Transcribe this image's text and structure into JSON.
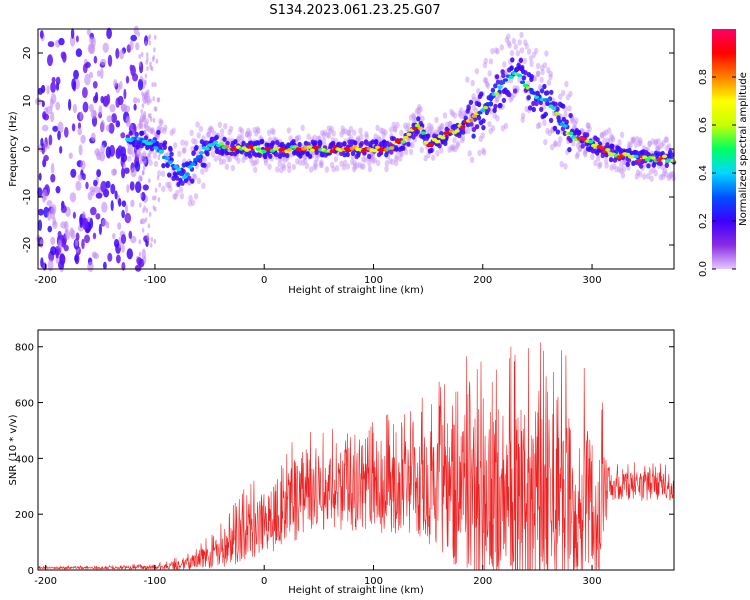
{
  "title": "S134.2023.061.23.25.G07",
  "chart_data": [
    {
      "type": "heatmap",
      "xlabel": "Height of straight line (km)",
      "ylabel": "Frequency (Hz)",
      "xlim": [
        -207,
        375
      ],
      "ylim": [
        -25,
        25
      ],
      "x_ticks": [
        -200,
        -100,
        0,
        100,
        200,
        300
      ],
      "y_ticks": [
        -20,
        -10,
        0,
        10,
        20
      ],
      "colorbar": {
        "label": "Normalized spectral amplitude",
        "range": [
          0,
          1
        ],
        "ticks": [
          0.0,
          0.2,
          0.4,
          0.6,
          0.8
        ],
        "colormap": [
          "#e6c8ff",
          "#8a2be2",
          "#3c00ff",
          "#0050ff",
          "#00d8ff",
          "#00ff60",
          "#c8ff00",
          "#ffff00",
          "#ff8000",
          "#ff0000",
          "#ff0066"
        ]
      },
      "ridge": {
        "x": [
          -125,
          -110,
          -100,
          -90,
          -80,
          -72,
          -65,
          -55,
          -45,
          -30,
          0,
          30,
          60,
          90,
          110,
          130,
          140,
          150,
          160,
          175,
          190,
          200,
          210,
          220,
          230,
          240,
          250,
          260,
          270,
          280,
          300,
          320,
          340,
          360,
          375
        ],
        "y": [
          2,
          2,
          1,
          -2,
          -4,
          -6,
          -3,
          0,
          1,
          0,
          0,
          0,
          0,
          0,
          0,
          2,
          5,
          1,
          2,
          4,
          6,
          8,
          11,
          14,
          16,
          13,
          11,
          10,
          6,
          3,
          1,
          -1,
          -2,
          -2,
          -2
        ]
      }
    },
    {
      "type": "line",
      "xlabel": "Height of straight line (km)",
      "ylabel": "SNR (10 * v/v)",
      "xlim": [
        -207,
        375
      ],
      "ylim": [
        0,
        860
      ],
      "x_ticks": [
        -200,
        -100,
        0,
        100,
        200,
        300
      ],
      "y_ticks": [
        0,
        200,
        400,
        600,
        800
      ],
      "color": "#ee2222",
      "envelope": {
        "x": [
          -207,
          -150,
          -100,
          -70,
          -60,
          -50,
          -40,
          -30,
          -20,
          -10,
          0,
          10,
          20,
          30,
          40,
          60,
          80,
          100,
          120,
          140,
          160,
          180,
          190,
          200,
          220,
          240,
          260,
          280,
          300,
          310,
          315,
          320,
          340,
          360,
          375
        ],
        "baseline": [
          8,
          8,
          10,
          20,
          40,
          50,
          70,
          95,
          130,
          150,
          170,
          195,
          220,
          240,
          260,
          280,
          290,
          300,
          300,
          300,
          290,
          280,
          270,
          260,
          250,
          240,
          230,
          220,
          210,
          210,
          300,
          300,
          300,
          300,
          300
        ],
        "amplitude": [
          5,
          6,
          10,
          30,
          40,
          60,
          80,
          110,
          130,
          150,
          160,
          170,
          180,
          180,
          180,
          190,
          200,
          220,
          230,
          240,
          300,
          380,
          420,
          430,
          440,
          450,
          450,
          440,
          380,
          300,
          100,
          70,
          70,
          70,
          70
        ]
      }
    }
  ]
}
